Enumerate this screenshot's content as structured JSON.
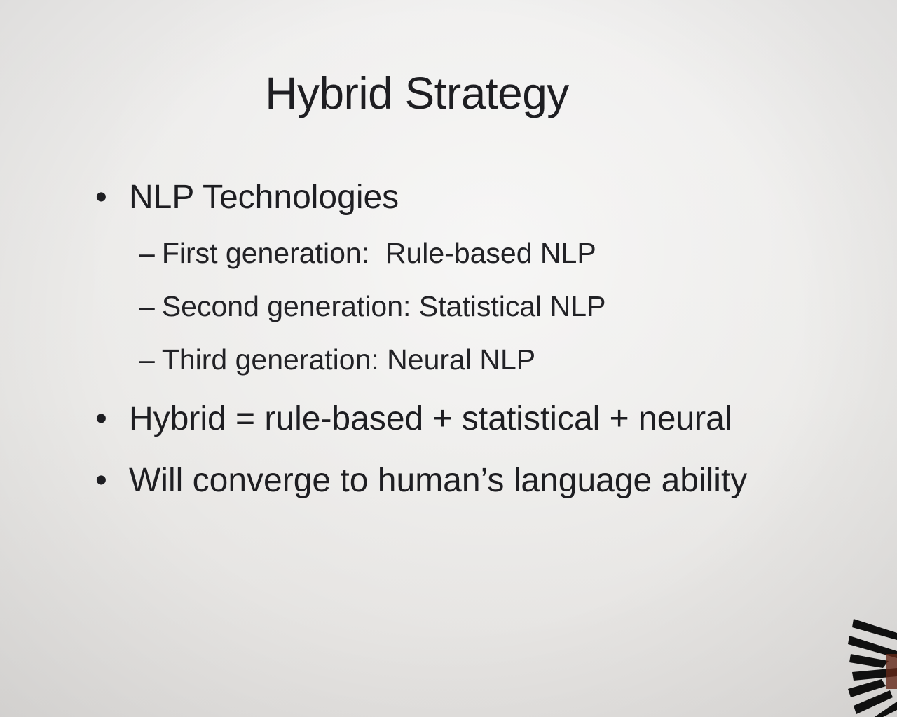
{
  "slide": {
    "title": "Hybrid Strategy",
    "bullets": [
      {
        "marker": "•",
        "text": "NLP Technologies",
        "subitems": [
          {
            "marker": "–",
            "text": "First generation:  Rule-based NLP"
          },
          {
            "marker": "–",
            "text": "Second generation: Statistical NLP"
          },
          {
            "marker": "–",
            "text": "Third generation: Neural NLP"
          }
        ]
      },
      {
        "marker": "•",
        "text": "Hybrid = rule-based + statistical + neural"
      },
      {
        "marker": "•",
        "text": "Will converge to human’s language ability"
      }
    ]
  },
  "colors": {
    "slide_background": "#eeedec",
    "text": "#1e1e22"
  }
}
